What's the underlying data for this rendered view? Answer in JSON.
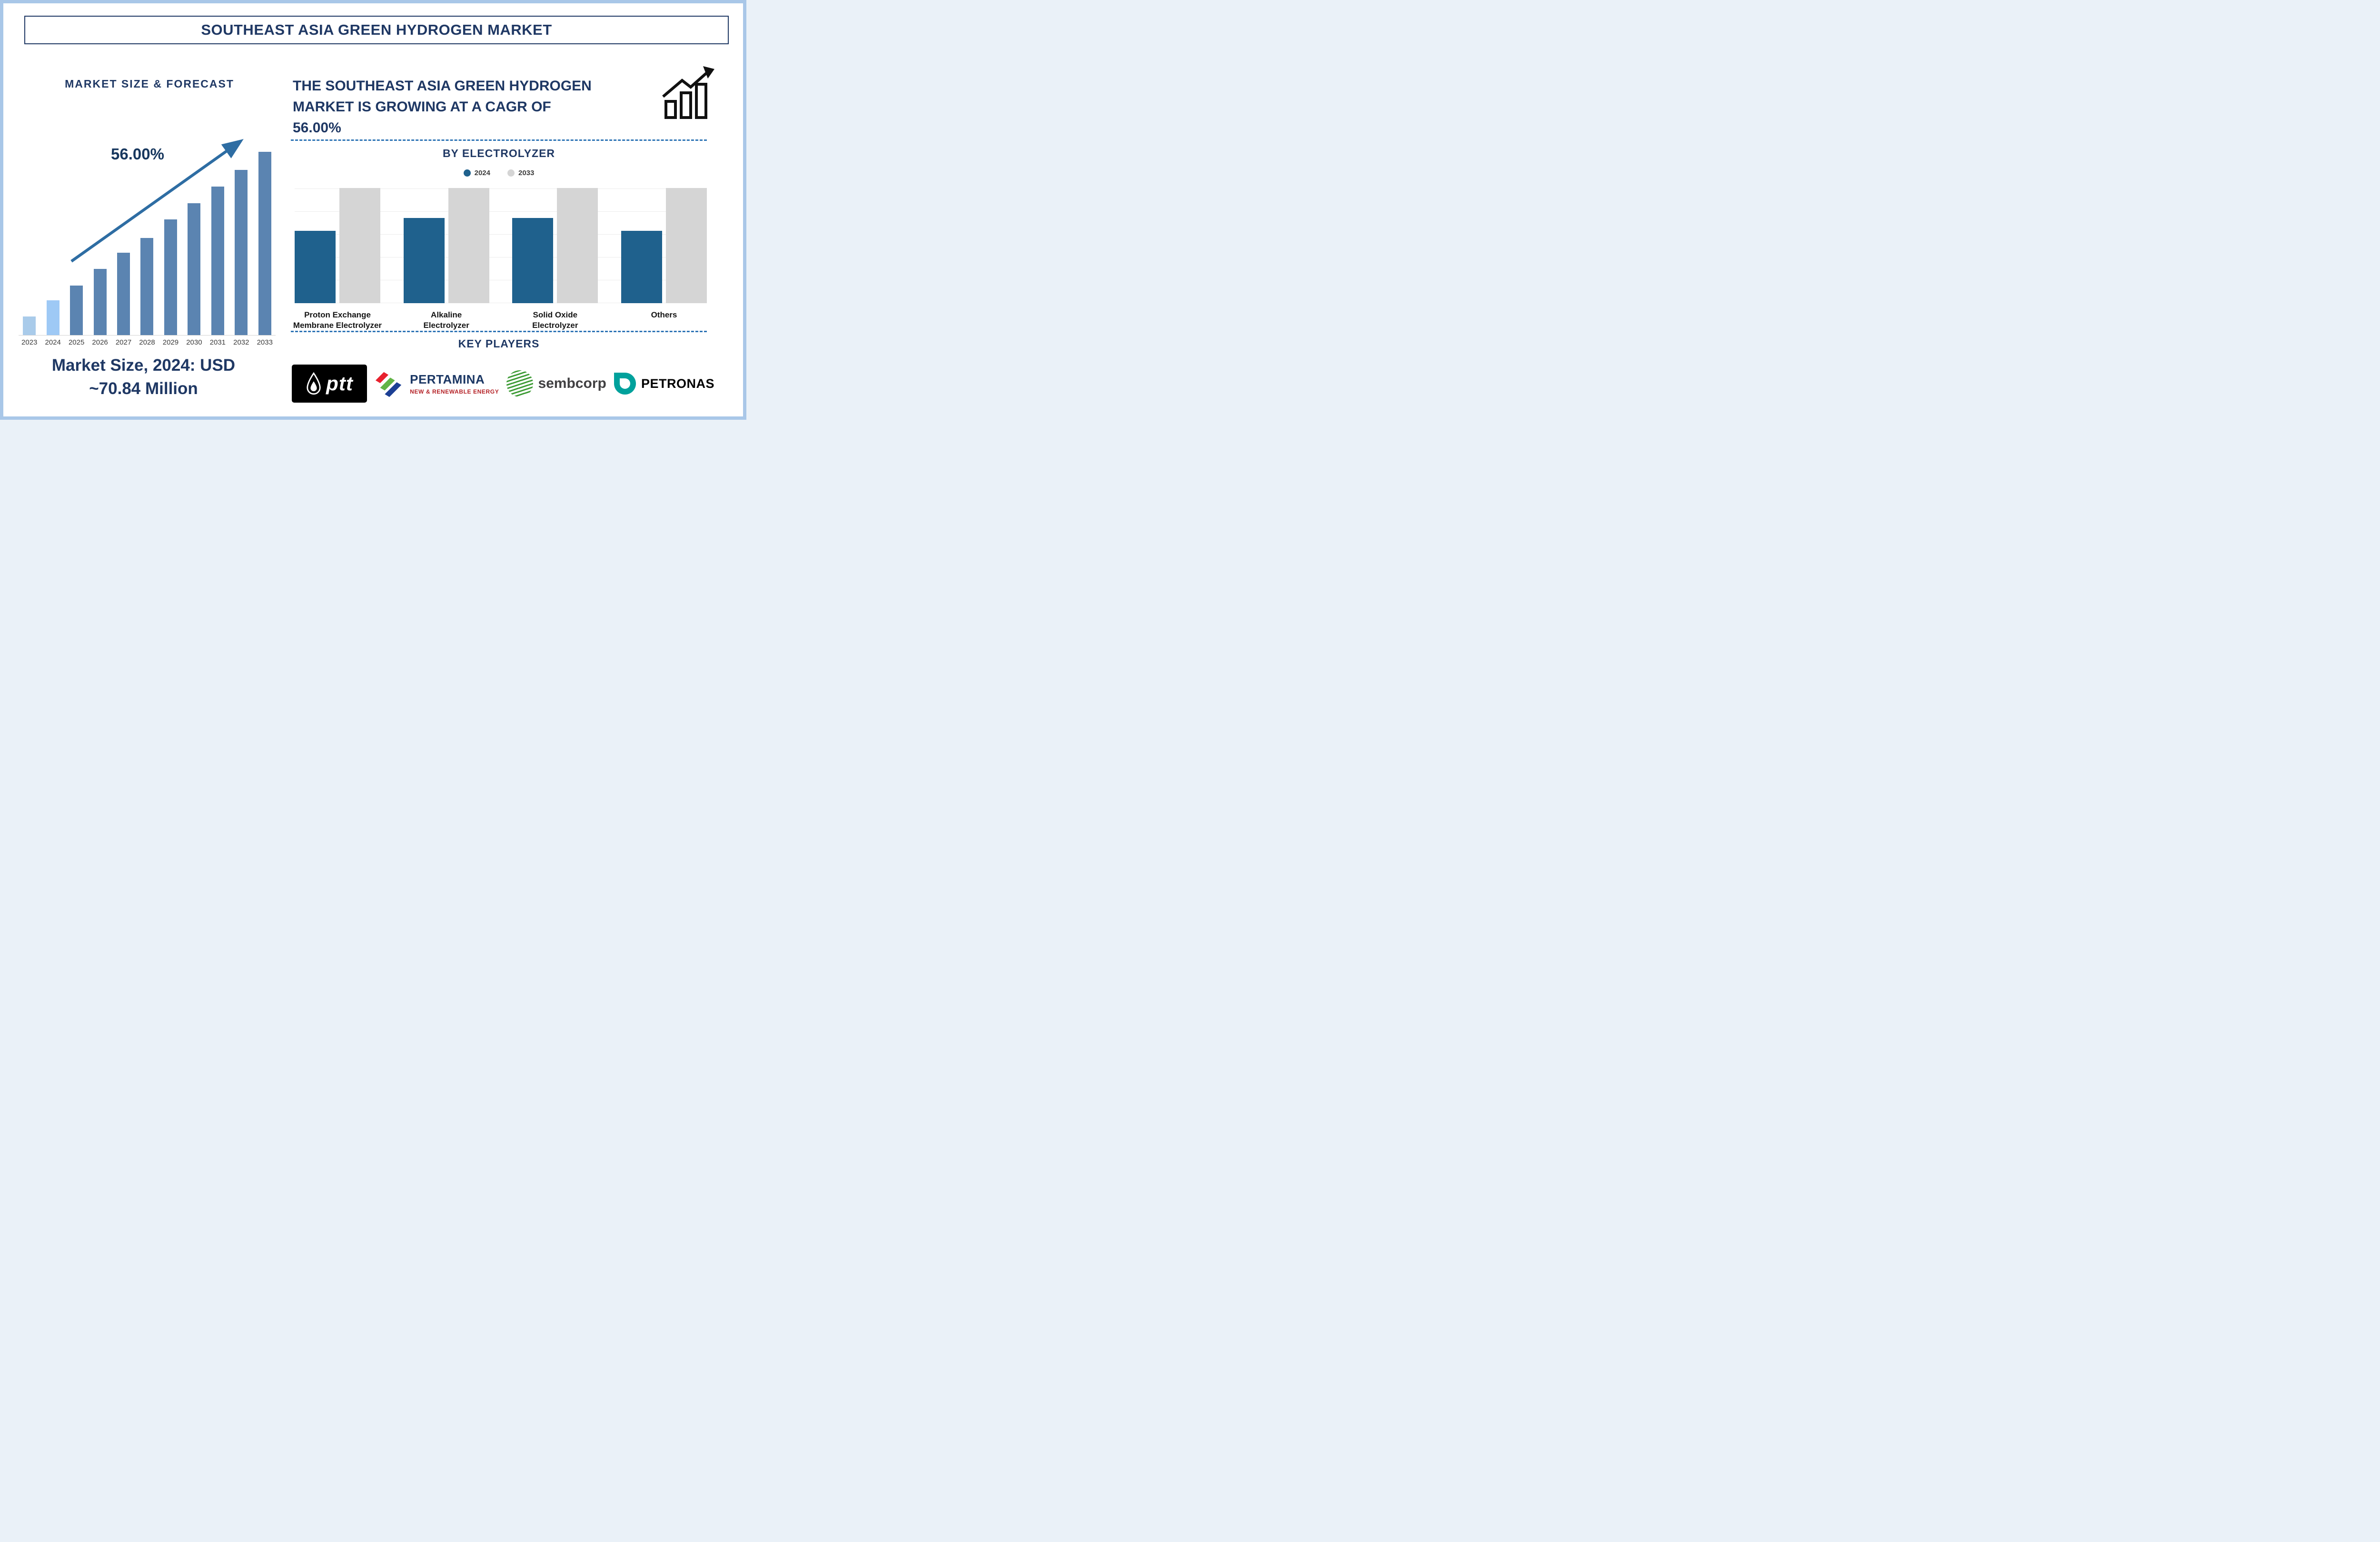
{
  "page": {
    "title": "SOUTHEAST ASIA GREEN HYDROGEN MARKET"
  },
  "forecast": {
    "heading": "MARKET SIZE & FORECAST",
    "cagr_annotation": "56.00%",
    "market_size_caption": "Market Size, 2024: USD\n~70.84 Million"
  },
  "growth": {
    "statement": "THE SOUTHEAST ASIA GREEN HYDROGEN\nMARKET IS GROWING AT A CAGR OF\n56.00%"
  },
  "electrolyzer": {
    "heading": "BY ELECTROLYZER",
    "legend": [
      {
        "label": "2024",
        "color": "#1F618D"
      },
      {
        "label": "2033",
        "color": "#D5D5D5"
      }
    ],
    "category_label_lines": [
      [
        "Proton Exchange",
        "Membrane Electrolyzer"
      ],
      [
        "Alkaline",
        "Electrolyzer"
      ],
      [
        "Solid Oxide",
        "Electrolyzer"
      ],
      [
        "Others"
      ]
    ]
  },
  "key_players": {
    "heading": "KEY PLAYERS",
    "players": [
      {
        "name": "ptt"
      },
      {
        "name": "PERTAMINA",
        "subtitle": "NEW & RENEWABLE ENERGY"
      },
      {
        "name": "sembcorp"
      },
      {
        "name": "PETRONAS"
      }
    ]
  },
  "colors": {
    "navy": "#1F3864",
    "bar_light_2023": "#A9CBEA",
    "bar_light_2024": "#9EC9F5",
    "bar_steel": "#5B84B1",
    "bar_2024_series": "#1F618D",
    "bar_2033_series": "#D5D5D5",
    "dashed_line": "#2E74B5",
    "arrow": "#2E6DA3"
  },
  "chart_data": [
    {
      "type": "bar",
      "title": "MARKET SIZE & FORECAST",
      "categories": [
        "2023",
        "2024",
        "2025",
        "2026",
        "2027",
        "2028",
        "2029",
        "2030",
        "2031",
        "2032",
        "2033"
      ],
      "values": [
        10,
        19,
        27,
        36,
        45,
        53,
        63,
        72,
        81,
        90,
        100
      ],
      "value_note": "axis unlabeled; values are relative bar heights as % of 2033 bar",
      "annotation": "56.00%",
      "caption": "Market Size, 2024: USD ~70.84 Million",
      "xlabel": "",
      "ylabel": "",
      "grid": false,
      "legend_position": "none"
    },
    {
      "type": "bar",
      "title": "BY ELECTROLYZER",
      "categories": [
        "Proton Exchange Membrane Electrolyzer",
        "Alkaline Electrolyzer",
        "Solid Oxide Electrolyzer",
        "Others"
      ],
      "series": [
        {
          "name": "2024",
          "values": [
            63,
            74,
            74,
            63
          ]
        },
        {
          "name": "2033",
          "values": [
            100,
            100,
            100,
            100
          ]
        }
      ],
      "value_note": "axis unlabeled; values are relative bar heights as % of plot height",
      "grid": true,
      "legend_position": "top"
    }
  ]
}
